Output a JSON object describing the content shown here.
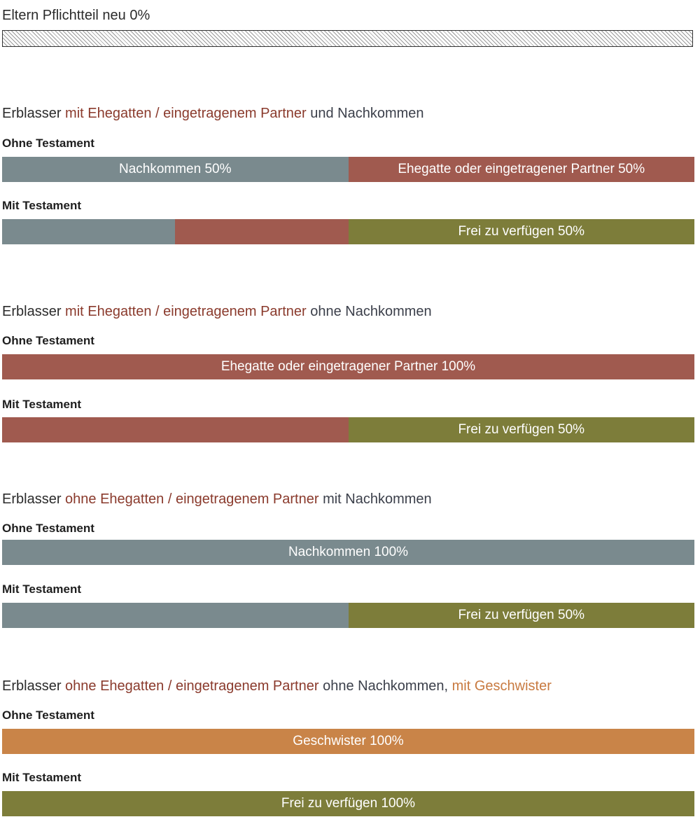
{
  "colors": {
    "nachkommen": "#7a8a8e",
    "ehegatte": "#a05a4f",
    "frei": "#7d7d3a",
    "geschwister": "#c98448",
    "heading_red": "#8a3a2c",
    "heading_dark": "#3b3f4a",
    "heading_orange": "#c87a40"
  },
  "top": {
    "label": "Eltern Pflichtteil neu 0%",
    "fill_percent": 0
  },
  "sections": [
    {
      "heading": {
        "p1": "Erblasser ",
        "p2": "mit Ehegatten / eingetragenem Partner",
        "p3": " und Nachkommen"
      },
      "ohne_label": "Ohne Testament",
      "ohne_segments": [
        {
          "label": "Nachkommen 50%",
          "percent": 50,
          "color": "nachkommen"
        },
        {
          "label": "Ehegatte oder eingetragener Partner 50%",
          "percent": 50,
          "color": "ehegatte"
        }
      ],
      "mit_label": "Mit Testament",
      "mit_segments": [
        {
          "label": "",
          "percent": 25,
          "color": "nachkommen"
        },
        {
          "label": "",
          "percent": 25,
          "color": "ehegatte"
        },
        {
          "label": "Frei zu verfügen 50%",
          "percent": 50,
          "color": "frei"
        }
      ]
    },
    {
      "heading": {
        "p1": "Erblasser ",
        "p2": "mit Ehegatten / eingetragenem Partner",
        "p3": " ohne Nachkommen"
      },
      "ohne_label": "Ohne Testament",
      "ohne_segments": [
        {
          "label": "Ehegatte oder eingetragener Partner 100%",
          "percent": 100,
          "color": "ehegatte"
        }
      ],
      "mit_label": "Mit Testament",
      "mit_segments": [
        {
          "label": "",
          "percent": 50,
          "color": "ehegatte"
        },
        {
          "label": "Frei zu verfügen 50%",
          "percent": 50,
          "color": "frei"
        }
      ]
    },
    {
      "heading": {
        "p1": "Erblasser ",
        "p2": "ohne Ehegatten / eingetragenem Partner",
        "p3": " mit Nachkommen"
      },
      "ohne_label": "Ohne Testament",
      "ohne_segments": [
        {
          "label": "Nachkommen 100%",
          "percent": 100,
          "color": "nachkommen"
        }
      ],
      "mit_label": "Mit Testament",
      "mit_segments": [
        {
          "label": "",
          "percent": 50,
          "color": "nachkommen"
        },
        {
          "label": "Frei zu verfügen 50%",
          "percent": 50,
          "color": "frei"
        }
      ]
    },
    {
      "heading": {
        "p1": "Erblasser ",
        "p2": "ohne Ehegatten / eingetragenem Partner",
        "p3": " ohne Nachkommen, ",
        "p4": "mit Geschwister"
      },
      "ohne_label": "Ohne Testament",
      "ohne_segments": [
        {
          "label": "Geschwister 100%",
          "percent": 100,
          "color": "geschwister"
        }
      ],
      "mit_label": "Mit Testament",
      "mit_segments": [
        {
          "label": "Frei zu verfügen 100%",
          "percent": 100,
          "color": "frei"
        }
      ]
    }
  ]
}
